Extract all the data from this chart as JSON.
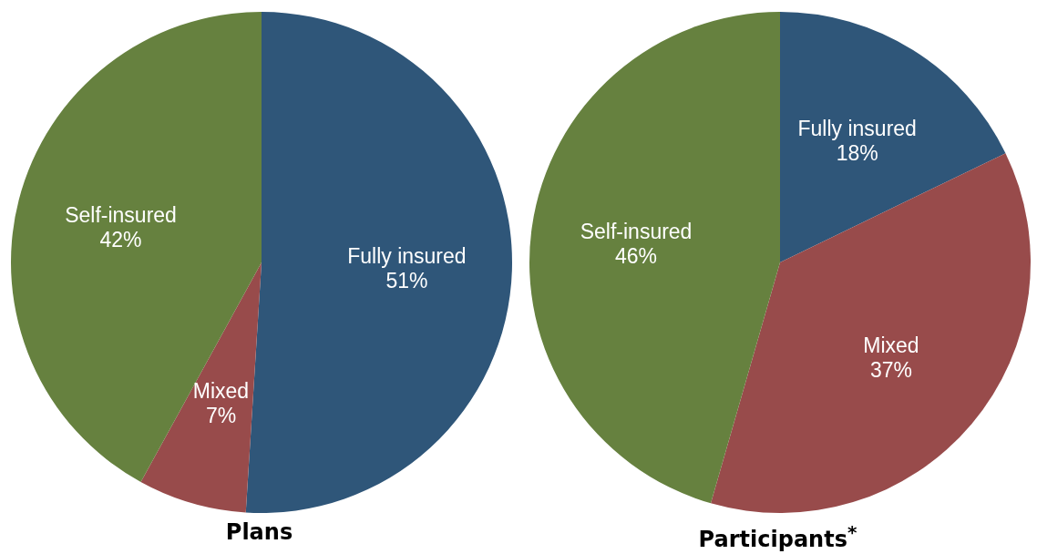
{
  "chart_data": [
    {
      "type": "pie",
      "title": "Plans",
      "categories": [
        "Fully insured",
        "Mixed",
        "Self-insured"
      ],
      "values": [
        51,
        7,
        42
      ],
      "value_labels": [
        "51%",
        "7%",
        "42%"
      ],
      "colors": [
        "#2f5679",
        "#984b4b",
        "#66813f"
      ]
    },
    {
      "type": "pie",
      "title": "Participants$^{*}$",
      "categories": [
        "Fully insured",
        "Mixed",
        "Self-insured"
      ],
      "values": [
        18,
        37,
        46
      ],
      "value_labels": [
        "18%",
        "37%",
        "46%"
      ],
      "colors": [
        "#2f5679",
        "#984b4b",
        "#66813f"
      ]
    }
  ]
}
